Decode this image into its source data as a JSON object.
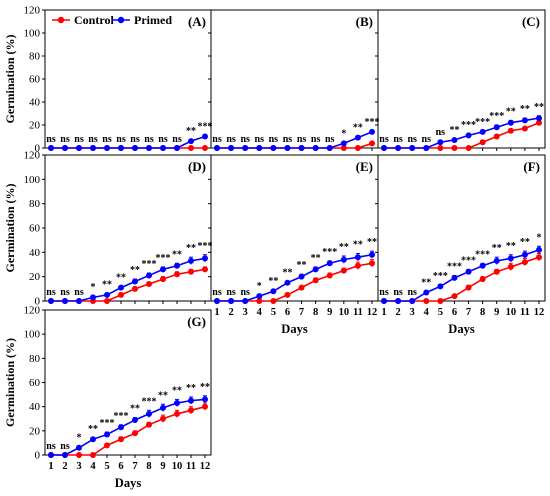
{
  "legend": {
    "items": [
      {
        "label": "Control",
        "color": "#ff0000"
      },
      {
        "label": "Primed",
        "color": "#0000ff"
      }
    ]
  },
  "axes": {
    "ylabel": "Germination (%)",
    "xlabel": "Days",
    "yticks": [
      0,
      20,
      40,
      60,
      80,
      100,
      120
    ],
    "xticks": [
      1,
      2,
      3,
      4,
      5,
      6,
      7,
      8,
      9,
      10,
      11,
      12
    ]
  },
  "chart_data": [
    {
      "type": "line",
      "panel": "(A)",
      "x": [
        1,
        2,
        3,
        4,
        5,
        6,
        7,
        8,
        9,
        10,
        11,
        12
      ],
      "ylim": [
        0,
        120
      ],
      "series": [
        {
          "name": "Control",
          "color": "#ff0000",
          "values": [
            0,
            0,
            0,
            0,
            0,
            0,
            0,
            0,
            0,
            0,
            0,
            0
          ],
          "errors": [
            0,
            0,
            0,
            0,
            0,
            0,
            0,
            0,
            0,
            0,
            0,
            0
          ]
        },
        {
          "name": "Primed",
          "color": "#0000ff",
          "values": [
            0,
            0,
            0,
            0,
            0,
            0,
            0,
            0,
            0,
            0,
            6,
            10
          ],
          "errors": [
            0,
            0,
            0,
            0,
            0,
            0,
            0,
            0,
            0,
            0,
            1,
            1
          ]
        }
      ],
      "significance": [
        "ns",
        "ns",
        "ns",
        "ns",
        "ns",
        "ns",
        "ns",
        "ns",
        "ns",
        "ns",
        "**",
        "***"
      ]
    },
    {
      "type": "line",
      "panel": "(B)",
      "x": [
        1,
        2,
        3,
        4,
        5,
        6,
        7,
        8,
        9,
        10,
        11,
        12
      ],
      "ylim": [
        0,
        120
      ],
      "series": [
        {
          "name": "Control",
          "color": "#ff0000",
          "values": [
            0,
            0,
            0,
            0,
            0,
            0,
            0,
            0,
            0,
            0,
            0,
            4
          ],
          "errors": [
            0,
            0,
            0,
            0,
            0,
            0,
            0,
            0,
            0,
            0,
            0,
            1
          ]
        },
        {
          "name": "Primed",
          "color": "#0000ff",
          "values": [
            0,
            0,
            0,
            0,
            0,
            0,
            0,
            0,
            0,
            4,
            9,
            14
          ],
          "errors": [
            0,
            0,
            0,
            0,
            0,
            0,
            0,
            0,
            0,
            1,
            1,
            1
          ]
        }
      ],
      "significance": [
        "ns",
        "ns",
        "ns",
        "ns",
        "ns",
        "ns",
        "ns",
        "ns",
        "ns",
        "*",
        "**",
        "***"
      ]
    },
    {
      "type": "line",
      "panel": "(C)",
      "x": [
        1,
        2,
        3,
        4,
        5,
        6,
        7,
        8,
        9,
        10,
        11,
        12
      ],
      "ylim": [
        0,
        120
      ],
      "series": [
        {
          "name": "Control",
          "color": "#ff0000",
          "values": [
            0,
            0,
            0,
            0,
            0,
            0,
            0,
            5,
            10,
            15,
            17,
            22
          ],
          "errors": [
            0,
            0,
            0,
            0,
            0,
            0,
            0,
            1,
            1,
            1,
            1,
            2
          ]
        },
        {
          "name": "Primed",
          "color": "#0000ff",
          "values": [
            0,
            0,
            0,
            0,
            5,
            7,
            11,
            14,
            18,
            22,
            24,
            26
          ],
          "errors": [
            0,
            0,
            0,
            0,
            1,
            1,
            1,
            1,
            2,
            2,
            2,
            2
          ]
        }
      ],
      "significance": [
        "ns",
        "ns",
        "ns",
        "ns",
        "ns",
        "**",
        "***",
        "***",
        "***",
        "**",
        "**",
        "**"
      ]
    },
    {
      "type": "line",
      "panel": "(D)",
      "x": [
        1,
        2,
        3,
        4,
        5,
        6,
        7,
        8,
        9,
        10,
        11,
        12
      ],
      "ylim": [
        0,
        120
      ],
      "series": [
        {
          "name": "Control",
          "color": "#ff0000",
          "values": [
            0,
            0,
            0,
            0,
            0,
            5,
            10,
            14,
            18,
            22,
            24,
            26
          ],
          "errors": [
            0,
            0,
            0,
            0,
            0,
            1,
            1,
            1,
            2,
            2,
            2,
            2
          ]
        },
        {
          "name": "Primed",
          "color": "#0000ff",
          "values": [
            0,
            0,
            0,
            3,
            5,
            11,
            16,
            21,
            26,
            29,
            33,
            35
          ],
          "errors": [
            0,
            0,
            0,
            1,
            1,
            1,
            2,
            2,
            2,
            2,
            3,
            3
          ]
        }
      ],
      "significance": [
        "ns",
        "ns",
        "ns",
        "*",
        "**",
        "**",
        "**",
        "***",
        "***",
        "**",
        "**",
        "***"
      ]
    },
    {
      "type": "line",
      "panel": "(E)",
      "x": [
        1,
        2,
        3,
        4,
        5,
        6,
        7,
        8,
        9,
        10,
        11,
        12
      ],
      "ylim": [
        0,
        120
      ],
      "series": [
        {
          "name": "Control",
          "color": "#ff0000",
          "values": [
            0,
            0,
            0,
            0,
            0,
            5,
            11,
            17,
            21,
            25,
            29,
            31
          ],
          "errors": [
            0,
            0,
            0,
            0,
            0,
            1,
            1,
            2,
            2,
            2,
            3,
            3
          ]
        },
        {
          "name": "Primed",
          "color": "#0000ff",
          "values": [
            0,
            0,
            0,
            4,
            8,
            15,
            20,
            26,
            31,
            34,
            36,
            38
          ],
          "errors": [
            0,
            0,
            0,
            1,
            1,
            1,
            2,
            2,
            2,
            3,
            3,
            3
          ]
        }
      ],
      "significance": [
        "ns",
        "ns",
        "ns",
        "*",
        "**",
        "**",
        "**",
        "**",
        "***",
        "**",
        "**",
        "**"
      ]
    },
    {
      "type": "line",
      "panel": "(F)",
      "x": [
        1,
        2,
        3,
        4,
        5,
        6,
        7,
        8,
        9,
        10,
        11,
        12
      ],
      "ylim": [
        0,
        120
      ],
      "series": [
        {
          "name": "Control",
          "color": "#ff0000",
          "values": [
            0,
            0,
            0,
            0,
            0,
            4,
            11,
            18,
            24,
            28,
            32,
            36
          ],
          "errors": [
            0,
            0,
            0,
            0,
            0,
            1,
            2,
            2,
            2,
            3,
            3,
            3
          ]
        },
        {
          "name": "Primed",
          "color": "#0000ff",
          "values": [
            0,
            0,
            0,
            7,
            12,
            19,
            24,
            29,
            33,
            35,
            38,
            42
          ],
          "errors": [
            0,
            0,
            0,
            1,
            1,
            2,
            2,
            2,
            3,
            3,
            3,
            3
          ]
        }
      ],
      "significance": [
        "ns",
        "ns",
        "ns",
        "**",
        "***",
        "***",
        "***",
        "***",
        "**",
        "**",
        "**",
        "*"
      ]
    },
    {
      "type": "line",
      "panel": "(G)",
      "x": [
        1,
        2,
        3,
        4,
        5,
        6,
        7,
        8,
        9,
        10,
        11,
        12
      ],
      "ylim": [
        0,
        120
      ],
      "series": [
        {
          "name": "Control",
          "color": "#ff0000",
          "values": [
            0,
            0,
            0,
            0,
            8,
            13,
            18,
            25,
            30,
            34,
            37,
            40
          ],
          "errors": [
            0,
            0,
            0,
            0,
            1,
            2,
            2,
            2,
            3,
            3,
            3,
            3
          ]
        },
        {
          "name": "Primed",
          "color": "#0000ff",
          "values": [
            0,
            0,
            6,
            13,
            17,
            23,
            29,
            34,
            39,
            43,
            45,
            46
          ],
          "errors": [
            0,
            0,
            1,
            1,
            2,
            2,
            2,
            3,
            3,
            3,
            3,
            3
          ]
        }
      ],
      "significance": [
        "ns",
        "ns",
        "*",
        "**",
        "***",
        "***",
        "**",
        "***",
        "**",
        "**",
        "**",
        "**"
      ]
    }
  ]
}
